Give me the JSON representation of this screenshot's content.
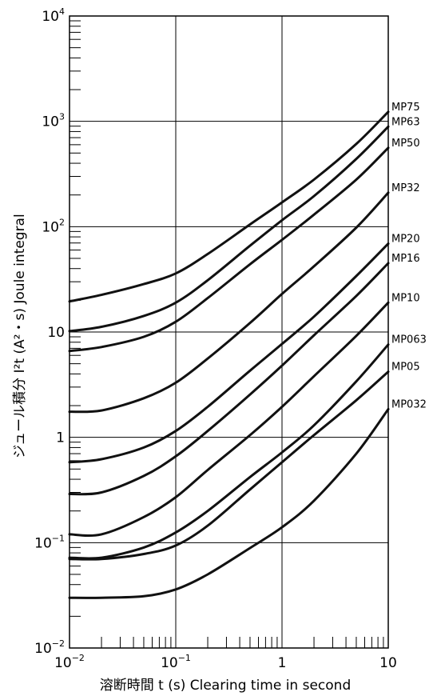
{
  "chart_data": {
    "type": "line",
    "title": "",
    "xlabel": "溶断時間 t (s)  Clearing time in second",
    "ylabel": "ジュール積分 I²t (A²・s)  Joule integral",
    "xscale": "log",
    "yscale": "log",
    "xlim": [
      0.01,
      10
    ],
    "ylim": [
      0.01,
      10000
    ],
    "grid": true,
    "legend": "labels at right end of each curve",
    "x_ticks": [
      {
        "base": "10",
        "exp": "−2"
      },
      {
        "base": "10",
        "exp": "−1"
      },
      {
        "base": "1",
        "exp": ""
      },
      {
        "base": "10",
        "exp": ""
      }
    ],
    "y_ticks": [
      {
        "base": "10",
        "exp": "−2"
      },
      {
        "base": "10",
        "exp": "−1"
      },
      {
        "base": "1",
        "exp": ""
      },
      {
        "base": "10",
        "exp": ""
      },
      {
        "base": "10",
        "exp": "2"
      },
      {
        "base": "10",
        "exp": "3"
      },
      {
        "base": "10",
        "exp": "4"
      }
    ],
    "x": [
      0.01,
      0.02,
      0.05,
      0.1,
      0.2,
      0.5,
      1,
      2,
      5,
      10
    ],
    "series": [
      {
        "name": "MP75",
        "values": [
          19.5,
          22.5,
          28.5,
          36,
          55,
          105,
          170,
          280,
          610,
          1230
        ]
      },
      {
        "name": "MP63",
        "values": [
          10.2,
          11.2,
          14.2,
          19,
          31,
          66,
          115,
          195,
          440,
          890
        ]
      },
      {
        "name": "MP50",
        "values": [
          6.6,
          7.2,
          9.0,
          12.5,
          21,
          44,
          75,
          130,
          280,
          560
        ]
      },
      {
        "name": "MP32",
        "values": [
          1.75,
          1.8,
          2.35,
          3.3,
          5.6,
          12.2,
          23,
          42,
          98,
          210
        ]
      },
      {
        "name": "MP20",
        "values": [
          0.58,
          0.62,
          0.8,
          1.15,
          1.95,
          4.3,
          7.7,
          14,
          34,
          69
        ]
      },
      {
        "name": "MP16",
        "values": [
          0.29,
          0.3,
          0.43,
          0.66,
          1.15,
          2.55,
          4.8,
          9.3,
          22,
          45
        ]
      },
      {
        "name": "MP10",
        "values": [
          0.12,
          0.12,
          0.175,
          0.27,
          0.49,
          1.05,
          1.95,
          3.8,
          9.2,
          19
        ]
      },
      {
        "name": "MP063",
        "values": [
          0.072,
          0.072,
          0.09,
          0.125,
          0.2,
          0.42,
          0.72,
          1.3,
          3.4,
          7.6
        ]
      },
      {
        "name": "MP05",
        "values": [
          0.07,
          0.07,
          0.078,
          0.094,
          0.145,
          0.32,
          0.58,
          1.05,
          2.25,
          4.2
        ]
      },
      {
        "name": "MP032",
        "values": [
          0.03,
          0.03,
          0.031,
          0.036,
          0.05,
          0.089,
          0.14,
          0.25,
          0.7,
          1.85
        ]
      }
    ]
  }
}
